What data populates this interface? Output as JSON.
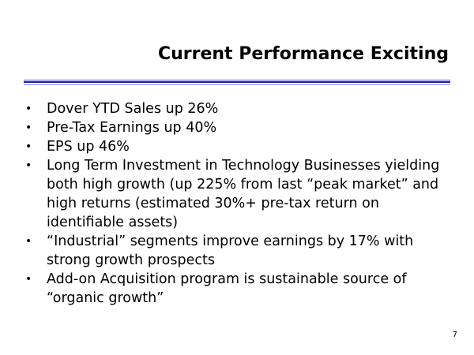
{
  "slide": {
    "title": "Current Performance Exciting",
    "bullet_glyph": "•",
    "bullets": [
      {
        "text": "Dover YTD Sales up 26%"
      },
      {
        "text": "Pre-Tax Earnings up 40%"
      },
      {
        "text": "EPS up 46%"
      },
      {
        "text": "Long Term Investment in Technology Businesses yielding both high growth (up 225% from last “peak market” and high returns (estimated 30%+ pre-tax return on identifiable assets)"
      },
      {
        "text": "“Industrial” segments improve earnings by 17% with strong growth prospects"
      },
      {
        "text": "Add-on Acquisition program is sustainable source of “organic growth”"
      }
    ],
    "page_number": "7"
  },
  "colors": {
    "rule": "#1a1a99",
    "text": "#000000",
    "background": "#ffffff"
  }
}
